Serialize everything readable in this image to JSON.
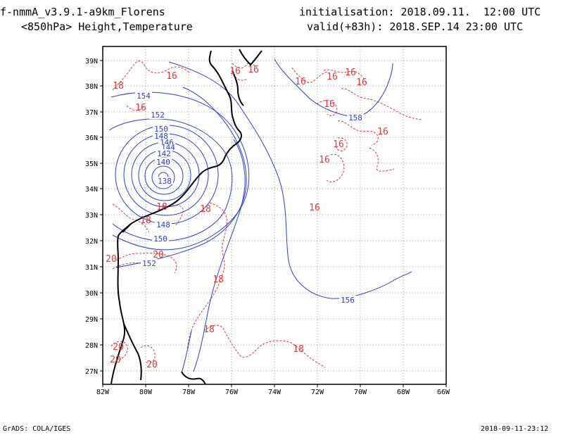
{
  "header": {
    "model_line": "f-nmmA_v3.9.1-a9km_Florens",
    "level_line": "<850hPa> Height,Temperature",
    "init_line": "initialisation: 2018.09.11.  12:00 UTC",
    "valid_line": "valid(+83h): 2018.SEP.14 23:00 UTC"
  },
  "footer": {
    "left": "GrADS: COLA/IGES",
    "right": "2018-09-11-23:12"
  },
  "axes": {
    "lat_ticks": [
      "39N",
      "38N",
      "37N",
      "36N",
      "35N",
      "34N",
      "33N",
      "32N",
      "31N",
      "30N",
      "29N",
      "28N",
      "27N"
    ],
    "lon_ticks": [
      "82W",
      "80W",
      "78W",
      "76W",
      "74W",
      "72W",
      "70W",
      "68W",
      "66W"
    ]
  },
  "height_labels": [
    "154",
    "152",
    "150",
    "148",
    "146",
    "144",
    "142",
    "140",
    "138",
    "148",
    "150",
    "152",
    "158",
    "156"
  ],
  "temp_labels": [
    "18",
    "16",
    "16",
    "16",
    "16",
    "16",
    "16",
    "16",
    "16",
    "16",
    "16",
    "16",
    "16",
    "18",
    "18",
    "20",
    "20",
    "18",
    "18",
    "18",
    "20",
    "20",
    "20"
  ],
  "colors": {
    "height_contour": "#2a3fd0",
    "temp_contour": "#e03a3a",
    "coast": "#000000",
    "grid": "#999999"
  }
}
